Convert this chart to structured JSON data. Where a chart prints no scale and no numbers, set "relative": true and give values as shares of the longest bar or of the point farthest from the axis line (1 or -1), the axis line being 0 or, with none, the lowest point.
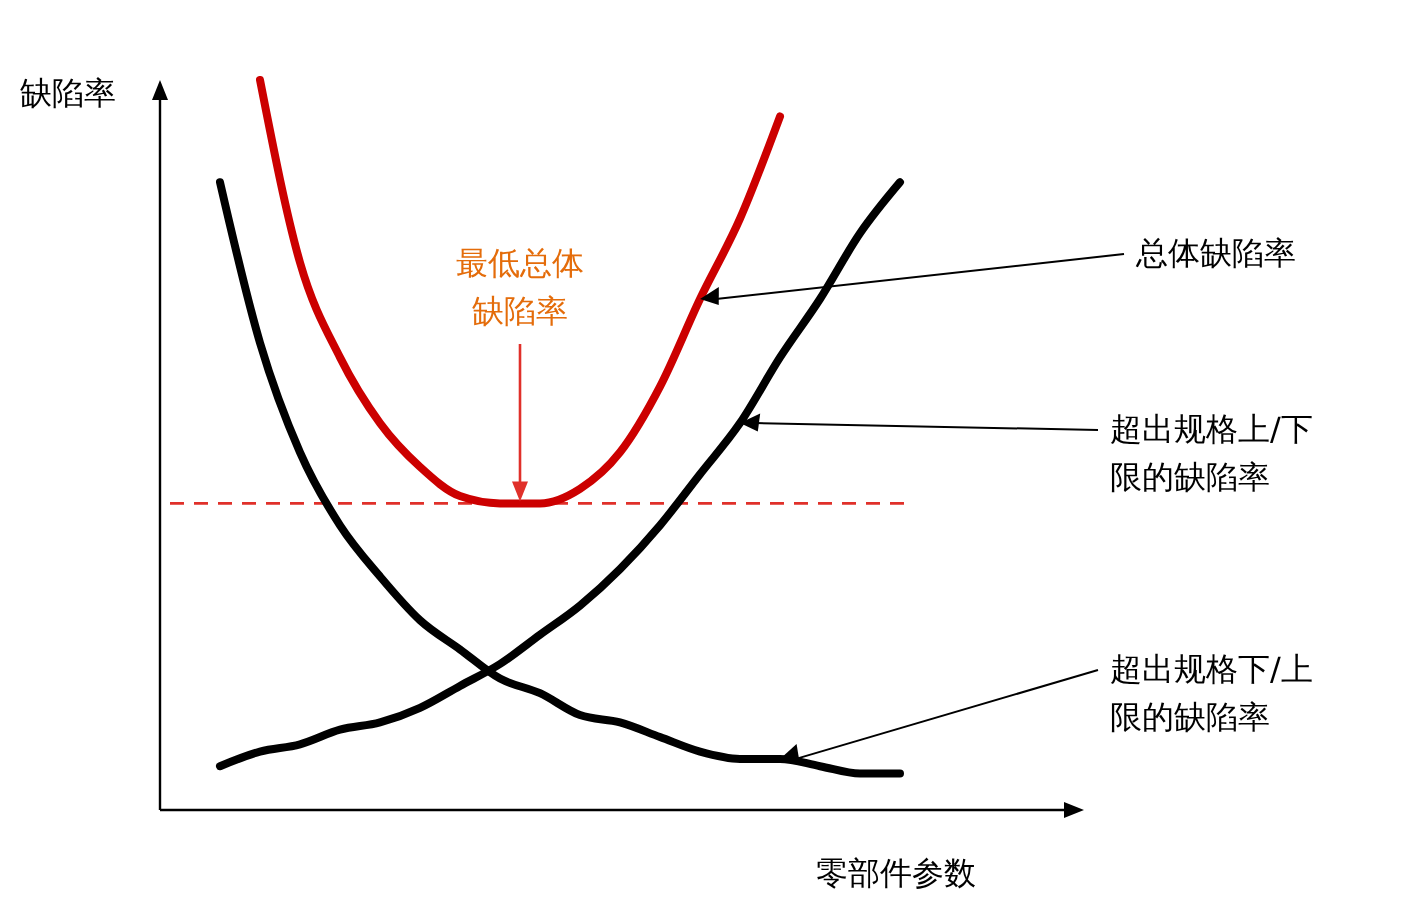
{
  "chart_data": {
    "type": "line",
    "relative": true,
    "xlabel": "零部件参数",
    "ylabel": "缺陷率",
    "categories": [
      null,
      null,
      null,
      null,
      null,
      null,
      null,
      null,
      null,
      null,
      null,
      null,
      null,
      null,
      null,
      null,
      null,
      null
    ],
    "series": [
      {
        "name": "总体缺陷率",
        "color": "#cc0000",
        "values": [
          null,
          1.0,
          0.75,
          0.62,
          0.53,
          0.47,
          0.43,
          0.42,
          0.42,
          0.44,
          0.49,
          0.58,
          0.7,
          0.81,
          0.95,
          null,
          null,
          null
        ]
      },
      {
        "name": "超出规格上/下限的缺陷率",
        "color": "#000000",
        "values": [
          0.06,
          0.08,
          0.09,
          0.11,
          0.12,
          0.14,
          0.17,
          0.2,
          0.24,
          0.28,
          0.33,
          0.39,
          0.46,
          0.53,
          0.62,
          0.7,
          0.79,
          0.86
        ]
      },
      {
        "name": "超出规格下/上限的缺陷率",
        "color": "#000000",
        "values": [
          0.86,
          0.64,
          0.49,
          0.39,
          0.32,
          0.26,
          0.22,
          0.18,
          0.16,
          0.13,
          0.12,
          0.1,
          0.08,
          0.07,
          0.07,
          0.06,
          0.05,
          0.05
        ]
      }
    ],
    "ref_lines": [
      {
        "axis": "y",
        "value": 0.42,
        "color": "#e0302a",
        "line_style": "dashed"
      }
    ],
    "annotations": [
      "最低总体缺陷率"
    ],
    "marker": "none",
    "line_style": "solid"
  }
}
